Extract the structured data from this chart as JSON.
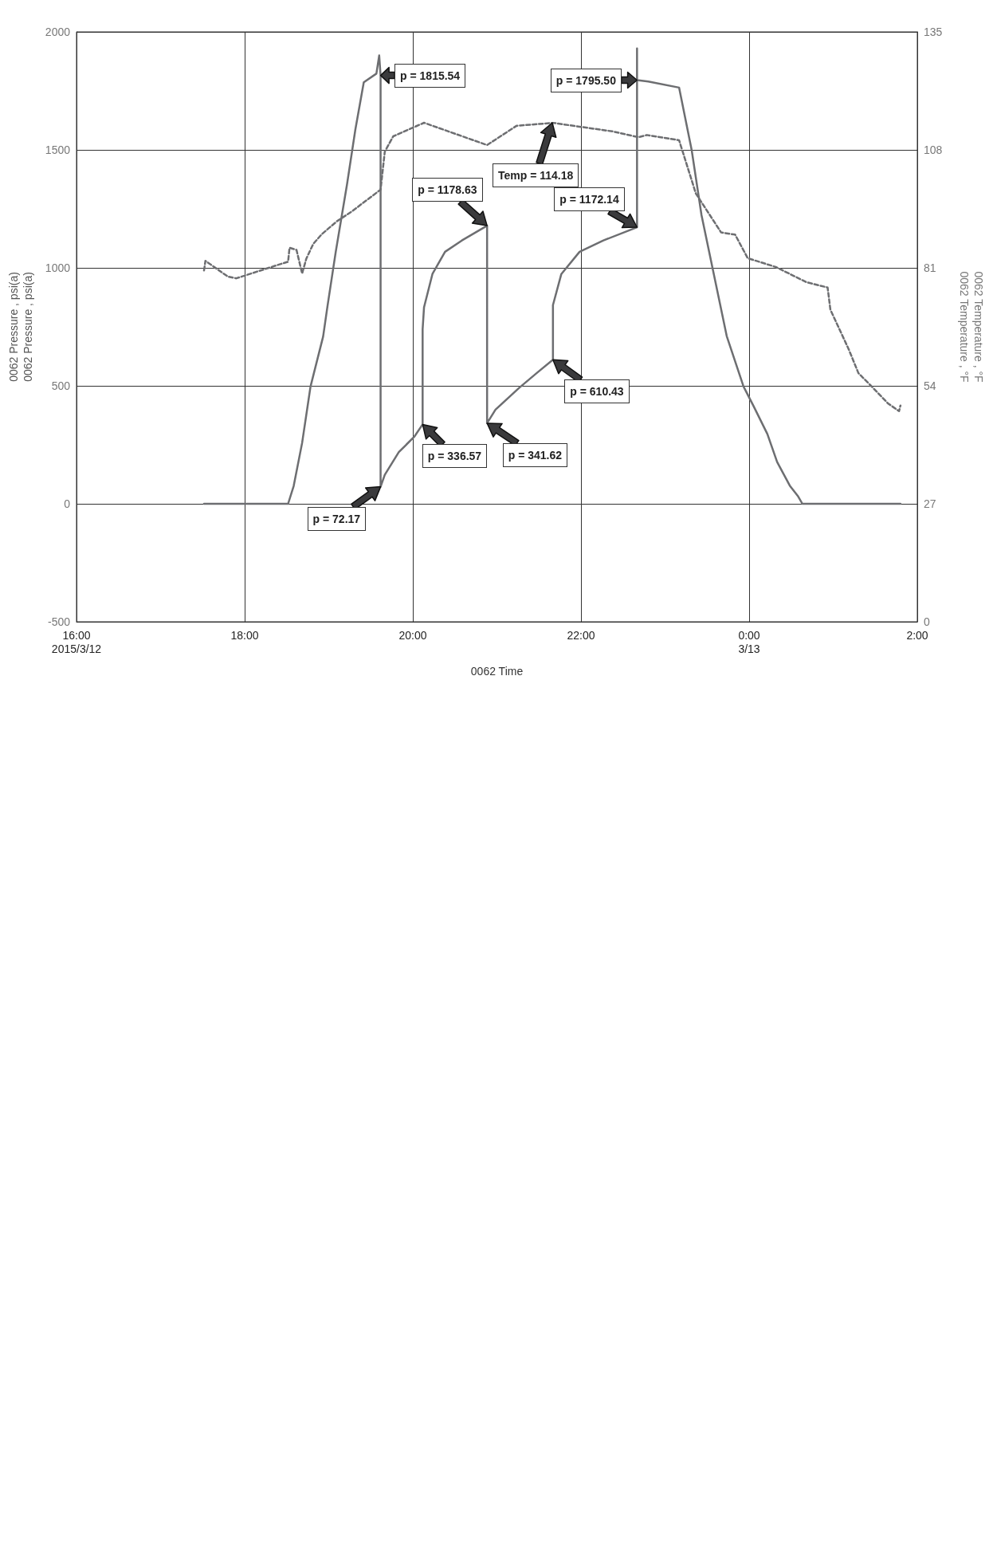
{
  "chart_data": {
    "type": "line",
    "xlabel": "0062 Time",
    "ylabel": "0062 Pressure , psi(a)\n0062 Pressure , psi(a)",
    "y2label": "0062 Temperature , °F\n0062 Temperature , °F",
    "xlim": [
      "2015-03-12T16:00",
      "2015-03-13T02:00"
    ],
    "xticks": [
      {
        "value": "2015-03-12T16:00",
        "label": "16:00\n2015/3/12"
      },
      {
        "value": "2015-03-12T18:00",
        "label": "18:00"
      },
      {
        "value": "2015-03-12T20:00",
        "label": "20:00"
      },
      {
        "value": "2015-03-12T22:00",
        "label": "22:00"
      },
      {
        "value": "2015-03-13T00:00",
        "label": "0:00\n3/13"
      },
      {
        "value": "2015-03-13T02:00",
        "label": "2:00"
      }
    ],
    "ylim": [
      -500,
      2000
    ],
    "yticks": [
      -500,
      0,
      500,
      1000,
      1500,
      2000
    ],
    "y2lim": [
      0,
      135
    ],
    "y2ticks": [
      0,
      27,
      54,
      81,
      108,
      135
    ],
    "grid": true,
    "marker": "none",
    "series": [
      {
        "color": "#6d6e71",
        "line_style": "solid",
        "x": [
          "2015-03-12T17:31",
          "2015-03-12T18:31",
          "2015-03-12T18:35",
          "2015-03-12T18:41",
          "2015-03-12T18:47",
          "2015-03-12T18:56",
          "2015-03-12T18:59",
          "2015-03-12T19:05",
          "2015-03-12T19:13",
          "2015-03-12T19:19",
          "2015-03-12T19:25",
          "2015-03-12T19:34",
          "2015-03-12T19:36",
          "2015-03-12T19:37",
          "2015-03-12T19:37",
          "2015-03-12T19:40",
          "2015-03-12T19:50",
          "2015-03-12T20:01",
          "2015-03-12T20:07",
          "2015-03-12T20:07",
          "2015-03-12T20:08",
          "2015-03-12T20:14",
          "2015-03-12T20:23",
          "2015-03-12T20:35",
          "2015-03-12T20:53",
          "2015-03-12T20:53",
          "2015-03-12T20:59",
          "2015-03-12T21:16",
          "2015-03-12T21:29",
          "2015-03-12T21:40",
          "2015-03-12T21:40",
          "2015-03-12T21:46",
          "2015-03-12T21:59",
          "2015-03-12T22:16",
          "2015-03-12T22:40",
          "2015-03-12T22:40",
          "2015-03-12T22:40",
          "2015-03-12T22:48",
          "2015-03-12T23:10",
          "2015-03-12T23:19",
          "2015-03-12T23:26",
          "2015-03-12T23:34",
          "2015-03-12T23:44",
          "2015-03-12T23:56",
          "2015-03-13T00:03",
          "2015-03-13T00:13",
          "2015-03-13T00:20",
          "2015-03-13T00:29",
          "2015-03-13T00:35",
          "2015-03-13T00:38",
          "2015-03-13T01:48"
        ],
        "values": [
          0,
          0,
          76,
          258,
          497,
          709,
          833,
          1068,
          1352,
          1586,
          1786,
          1823,
          1900,
          1815.54,
          72.17,
          123,
          219,
          284,
          336.57,
          740,
          833,
          974,
          1068,
          1116,
          1178.63,
          341.62,
          399,
          492,
          557,
          610.43,
          842,
          974,
          1068,
          1116,
          1172.14,
          1930,
          1795.5,
          1790,
          1764,
          1499,
          1224,
          996,
          711,
          497,
          416,
          296,
          177,
          77,
          31,
          0,
          0
        ]
      },
      {
        "color": "#6d6e71",
        "line_style": "dashed",
        "axis": "y2",
        "x": [
          "2015-03-12T17:31",
          "2015-03-12T17:32",
          "2015-03-12T17:48",
          "2015-03-12T17:54",
          "2015-03-12T18:22",
          "2015-03-12T18:31",
          "2015-03-12T18:32",
          "2015-03-12T18:37",
          "2015-03-12T18:41",
          "2015-03-12T18:44",
          "2015-03-12T18:49",
          "2015-03-12T18:55",
          "2015-03-12T19:06",
          "2015-03-12T19:16",
          "2015-03-12T19:37",
          "2015-03-12T19:40",
          "2015-03-12T19:46",
          "2015-03-12T20:08",
          "2015-03-12T20:53",
          "2015-03-12T21:14",
          "2015-03-12T21:40",
          "2015-03-12T22:23",
          "2015-03-12T22:41",
          "2015-03-12T22:47",
          "2015-03-12T23:10",
          "2015-03-12T23:22",
          "2015-03-12T23:40",
          "2015-03-12T23:50",
          "2015-03-12T23:59",
          "2015-03-13T00:19",
          "2015-03-13T00:41",
          "2015-03-13T00:56",
          "2015-03-13T00:58",
          "2015-03-13T01:11",
          "2015-03-13T01:18",
          "2015-03-13T01:27",
          "2015-03-13T01:39",
          "2015-03-13T01:47",
          "2015-03-13T01:48"
        ],
        "values": [
          80.4,
          82.6,
          79.0,
          78.6,
          81.5,
          82.4,
          85.6,
          85.1,
          79.7,
          83.1,
          86.5,
          88.7,
          91.7,
          93.8,
          98.9,
          107.6,
          111.1,
          114.2,
          109.1,
          113.5,
          114.18,
          112.2,
          110.9,
          111.4,
          110.2,
          98.0,
          89.1,
          88.6,
          83.2,
          81.2,
          77.7,
          76.5,
          71.4,
          62.4,
          56.9,
          54.0,
          50.0,
          48.2,
          49.5
        ]
      }
    ],
    "annotations": [
      {
        "text": "p = 1815.54",
        "x": "2015-03-12T19:37",
        "y": 1815.54
      },
      {
        "text": "p = 72.17",
        "x": "2015-03-12T19:37",
        "y": 72.17
      },
      {
        "text": "p = 336.57",
        "x": "2015-03-12T20:07",
        "y": 336.57
      },
      {
        "text": "p = 1178.63",
        "x": "2015-03-12T20:53",
        "y": 1178.63
      },
      {
        "text": "p = 341.62",
        "x": "2015-03-12T20:53",
        "y": 341.62
      },
      "Temp = 114.18",
      {
        "text": "p = 610.43",
        "x": "2015-03-12T21:40",
        "y": 610.43
      },
      {
        "text": "p = 1172.14",
        "x": "2015-03-12T22:40",
        "y": 1172.14
      },
      {
        "text": "p = 1795.50",
        "x": "2015-03-12T22:40",
        "y": 1795.5
      }
    ]
  }
}
